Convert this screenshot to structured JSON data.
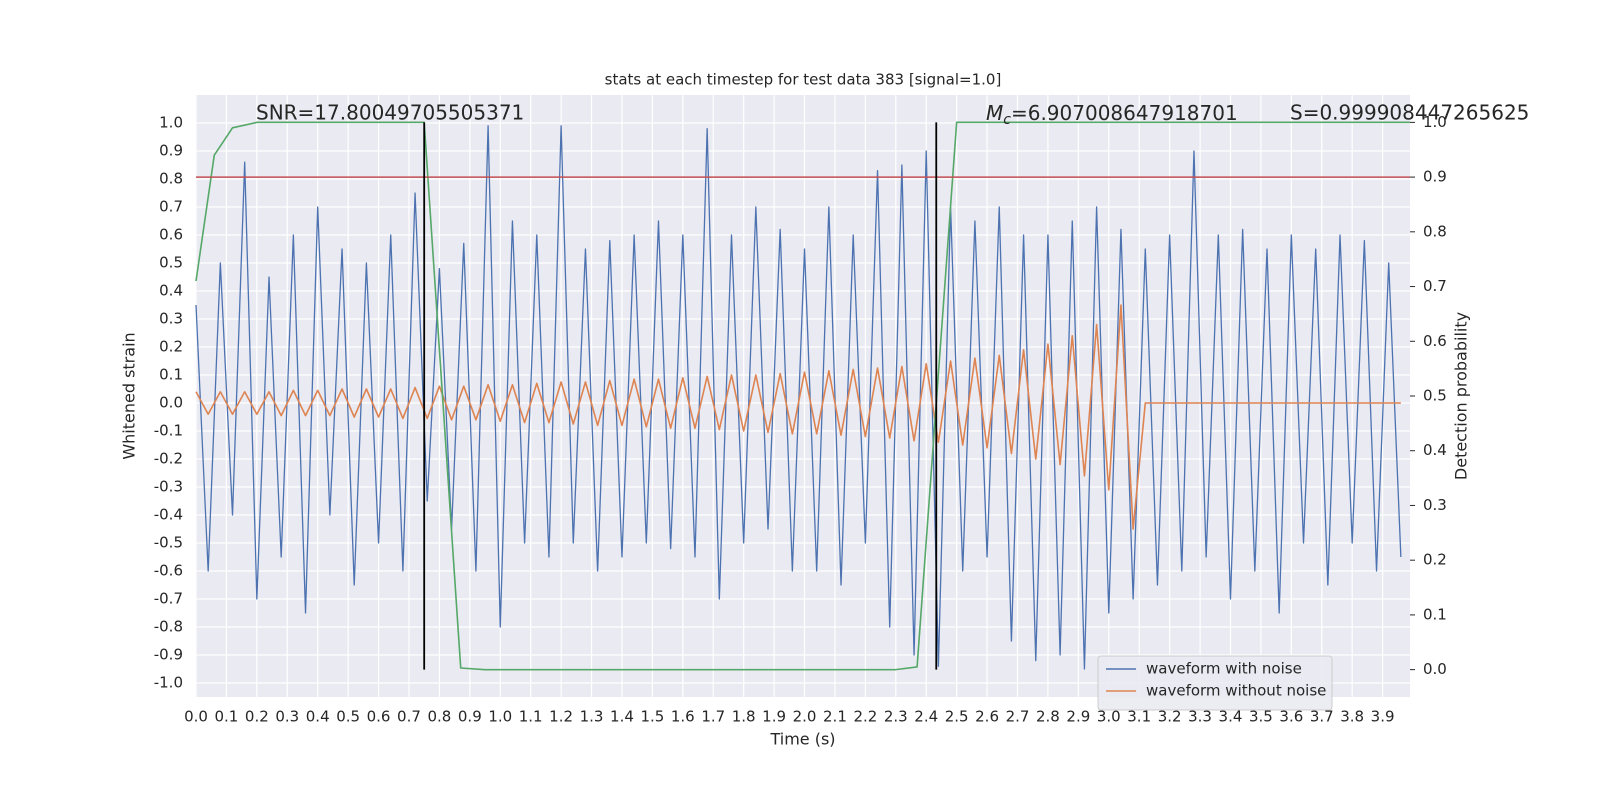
{
  "chart_data": {
    "type": "line",
    "title": "stats at each timestep for test data 383 [signal=1.0]",
    "xlabel": "Time (s)",
    "ylabel": "Whitened strain",
    "y2label": "Detection probability",
    "annotations": {
      "snr": "SNR=17.80049705505371",
      "mc": {
        "symbol": "M",
        "subscript": "c",
        "text": "=6.907008647918701"
      },
      "s": "S=0.999908447265625"
    },
    "grid": true,
    "legend": "lower right",
    "xlim": [
      0,
      3.99
    ],
    "ylim": [
      -1.05,
      1.1
    ],
    "y2lim": [
      -0.05,
      1.05
    ],
    "xticks": [
      {
        "value": 0,
        "label": "0.0"
      },
      0.1,
      0.2,
      0.3,
      0.4,
      0.5,
      0.6,
      0.7,
      0.8,
      0.9,
      {
        "value": 1,
        "label": "1.0"
      },
      1.1,
      1.2,
      1.3,
      1.4,
      1.5,
      1.6,
      1.7,
      1.8,
      1.9,
      {
        "value": 2,
        "label": "2.0"
      },
      2.1,
      2.2,
      2.3,
      2.4,
      2.5,
      2.6,
      2.7,
      2.8,
      2.9,
      {
        "value": 3,
        "label": "3.0"
      },
      3.1,
      3.2,
      3.3,
      3.4,
      3.5,
      3.6,
      3.7,
      3.8,
      3.9
    ],
    "yticks": [
      {
        "value": 1,
        "label": "1.0"
      },
      0.9,
      0.8,
      0.7,
      0.6,
      0.5,
      0.4,
      0.3,
      0.2,
      0.1,
      {
        "value": 0,
        "label": "0.0"
      },
      -0.1,
      -0.2,
      -0.3,
      -0.4,
      -0.5,
      -0.6,
      -0.7,
      -0.8,
      -0.9,
      {
        "value": -1,
        "label": "-1.0"
      }
    ],
    "y2ticks": [
      {
        "value": 0,
        "label": "0.0"
      },
      0.1,
      0.2,
      0.3,
      0.4,
      0.5,
      0.6,
      0.7,
      0.8,
      0.9,
      {
        "value": 1,
        "label": "1.0"
      }
    ],
    "x": [
      0,
      0.04,
      0.08,
      0.12,
      0.16,
      0.2,
      0.24,
      0.28,
      0.32,
      0.36,
      0.4,
      0.44,
      0.48,
      0.52,
      0.56,
      0.6,
      0.64,
      0.68,
      0.72,
      0.76,
      0.8,
      0.84,
      0.88,
      0.92,
      0.96,
      1,
      1.04,
      1.08,
      1.12,
      1.16,
      1.2,
      1.24,
      1.28,
      1.32,
      1.36,
      1.4,
      1.44,
      1.48,
      1.52,
      1.56,
      1.6,
      1.64,
      1.68,
      1.72,
      1.76,
      1.8,
      1.84,
      1.88,
      1.92,
      1.96,
      2,
      2.04,
      2.08,
      2.12,
      2.16,
      2.2,
      2.24,
      2.28,
      2.32,
      2.36,
      2.4,
      2.44,
      2.48,
      2.52,
      2.56,
      2.6,
      2.64,
      2.68,
      2.72,
      2.76,
      2.8,
      2.84,
      2.88,
      2.92,
      2.96,
      3,
      3.04,
      3.08,
      3.12,
      3.16,
      3.2,
      3.24,
      3.28,
      3.32,
      3.36,
      3.4,
      3.44,
      3.48,
      3.52,
      3.56,
      3.6,
      3.64,
      3.68,
      3.72,
      3.76,
      3.8,
      3.84,
      3.88,
      3.92,
      3.96
    ],
    "series": [
      {
        "name": "waveform with noise",
        "color": "#4c72b0",
        "axis": "y",
        "values": [
          0.35,
          -0.6,
          0.5,
          -0.4,
          0.86,
          -0.7,
          0.45,
          -0.55,
          0.6,
          -0.75,
          0.7,
          -0.4,
          0.55,
          -0.65,
          0.5,
          -0.5,
          0.6,
          -0.6,
          0.75,
          -0.35,
          0.48,
          -0.45,
          0.57,
          -0.6,
          0.99,
          -0.8,
          0.65,
          -0.5,
          0.6,
          -0.55,
          0.99,
          -0.5,
          0.55,
          -0.6,
          0.58,
          -0.55,
          0.6,
          -0.5,
          0.65,
          -0.52,
          0.6,
          -0.55,
          0.98,
          -0.7,
          0.6,
          -0.5,
          0.7,
          -0.45,
          0.62,
          -0.6,
          0.55,
          -0.6,
          0.7,
          -0.65,
          0.6,
          -0.5,
          0.83,
          -0.8,
          0.85,
          -0.9,
          0.9,
          -0.94,
          0.7,
          -0.6,
          0.65,
          -0.55,
          0.7,
          -0.85,
          0.6,
          -0.92,
          0.6,
          -0.9,
          0.65,
          -0.95,
          0.7,
          -0.75,
          0.62,
          -0.7,
          0.55,
          -0.65,
          0.6,
          -0.6,
          0.9,
          -0.55,
          0.6,
          -0.7,
          0.62,
          -0.6,
          0.55,
          -0.75,
          0.6,
          -0.5,
          0.55,
          -0.65,
          0.6,
          -0.5,
          0.58,
          -0.6,
          0.5,
          -0.55
        ]
      },
      {
        "name": "waveform without noise",
        "color": "#dd8452",
        "axis": "y",
        "values": [
          0.04,
          -0.04,
          0.04,
          -0.04,
          0.04,
          -0.04,
          0.04,
          -0.045,
          0.045,
          -0.045,
          0.045,
          -0.045,
          0.05,
          -0.05,
          0.05,
          -0.05,
          0.05,
          -0.055,
          0.055,
          -0.055,
          0.06,
          -0.06,
          0.06,
          -0.06,
          0.065,
          -0.065,
          0.065,
          -0.07,
          0.07,
          -0.07,
          0.075,
          -0.075,
          0.075,
          -0.08,
          0.08,
          -0.08,
          0.085,
          -0.085,
          0.085,
          -0.09,
          0.09,
          -0.09,
          0.095,
          -0.095,
          0.1,
          -0.1,
          0.1,
          -0.105,
          0.105,
          -0.11,
          0.11,
          -0.11,
          0.115,
          -0.115,
          0.12,
          -0.12,
          0.125,
          -0.125,
          0.13,
          -0.135,
          0.14,
          -0.14,
          0.15,
          -0.15,
          0.16,
          -0.16,
          0.17,
          -0.18,
          0.19,
          -0.2,
          0.21,
          -0.22,
          0.24,
          -0.26,
          0.28,
          -0.31,
          0.35,
          -0.45,
          0,
          0,
          0,
          0,
          0,
          0,
          0,
          0,
          0,
          0,
          0,
          0,
          0,
          0,
          0,
          0,
          0,
          0,
          0,
          0,
          0,
          0
        ]
      },
      {
        "color": "#55a868",
        "axis": "y2",
        "x": [
          0,
          0.06,
          0.12,
          0.2,
          0.75,
          0.87,
          0.95,
          1.6,
          2.3,
          2.37,
          2.5,
          3.99
        ],
        "values": [
          0.71,
          0.94,
          0.99,
          1,
          1,
          0.003,
          0,
          0,
          0,
          0.005,
          1,
          1
        ]
      }
    ],
    "threshold": {
      "value": 0.9,
      "axis": "y2",
      "color": "#c44e52"
    },
    "vlines": {
      "x": [
        0.75,
        2.433
      ],
      "color": "#000000",
      "y2range": [
        0,
        1
      ]
    }
  }
}
